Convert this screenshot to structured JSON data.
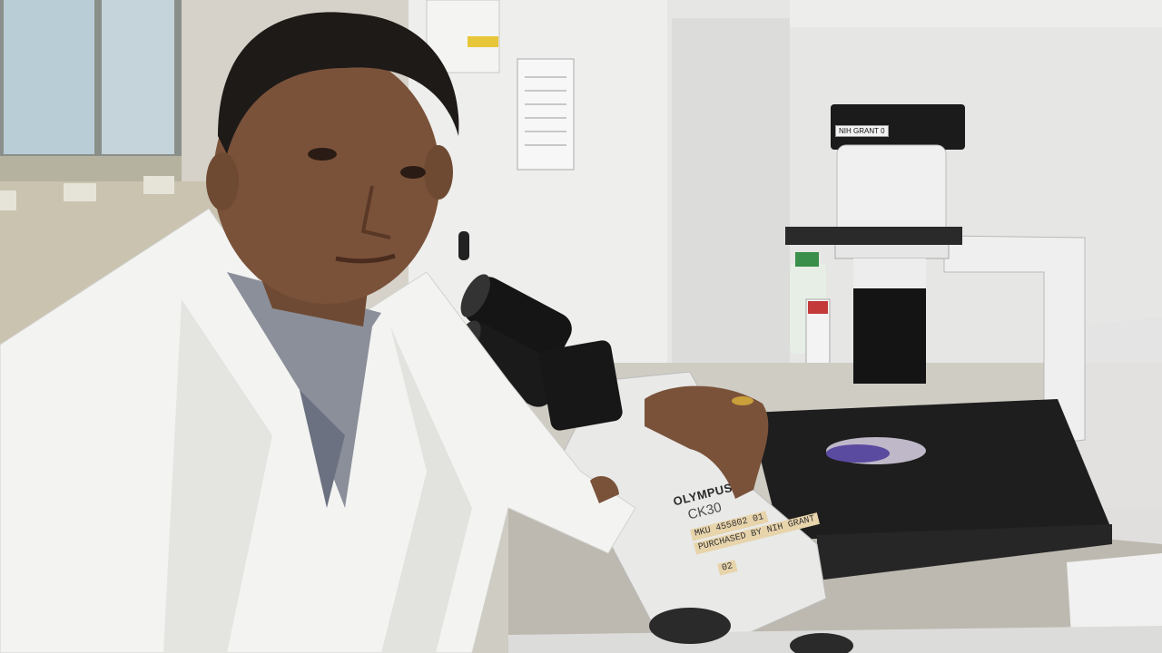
{
  "microscope": {
    "brand": "OLYMPUS",
    "model": "CK30",
    "asset_tag": "MKU 455802 01",
    "funding_label": "PURCHASED BY NIH GRANT",
    "number_tag": "02",
    "camera_label": "NIH GRANT 0"
  }
}
